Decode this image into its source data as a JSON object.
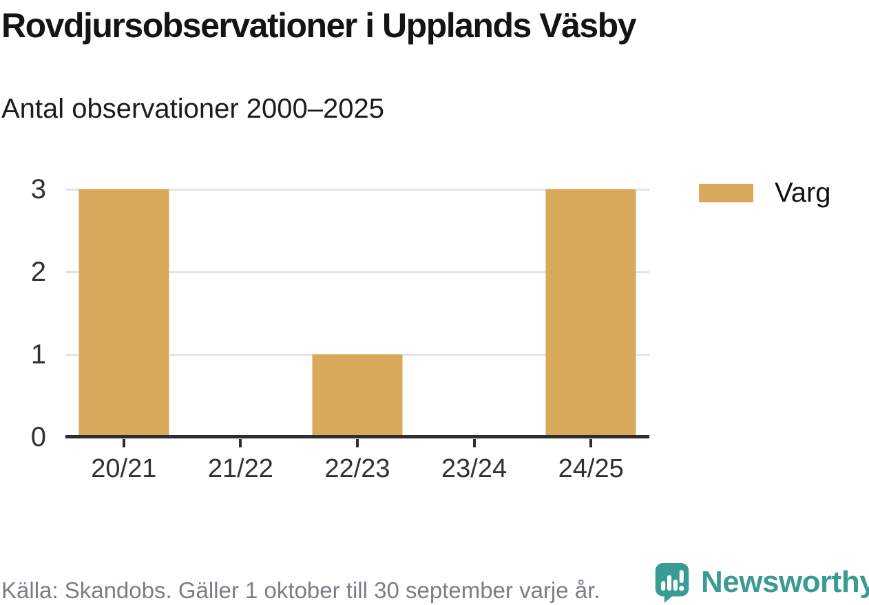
{
  "title": "Rovdjursobservationer i Upplands Väsby",
  "subtitle": "Antal observationer 2000–2025",
  "legend": {
    "label": "Varg",
    "swatch_color": "#d8a95a"
  },
  "footer": {
    "source": "Källa: Skandobs. Gäller 1 oktober till 30 september varje år.",
    "brand": "Newsworthy",
    "brand_icon": "bar-chart-speech-bubble-icon"
  },
  "colors": {
    "bar": "#d8a95a",
    "axis": "#2e2e2e",
    "gridline": "#e4e4e4",
    "title_text": "#141414",
    "tick_text": "#303030",
    "footer_text": "#7d7d85",
    "brand_teal": "#3a9a94"
  },
  "chart_data": {
    "type": "bar",
    "categories": [
      "20/21",
      "21/22",
      "22/23",
      "23/24",
      "24/25"
    ],
    "series": [
      {
        "name": "Varg",
        "values": [
          3,
          0,
          1,
          0,
          3
        ],
        "color": "#d8a95a"
      }
    ],
    "title": "Rovdjursobservationer i Upplands Väsby",
    "subtitle": "Antal observationer 2000–2025",
    "xlabel": "",
    "ylabel": "",
    "ylim": [
      0,
      3
    ],
    "yticks": [
      0,
      1,
      2,
      3
    ],
    "grid": true,
    "legend_position": "top-right"
  }
}
